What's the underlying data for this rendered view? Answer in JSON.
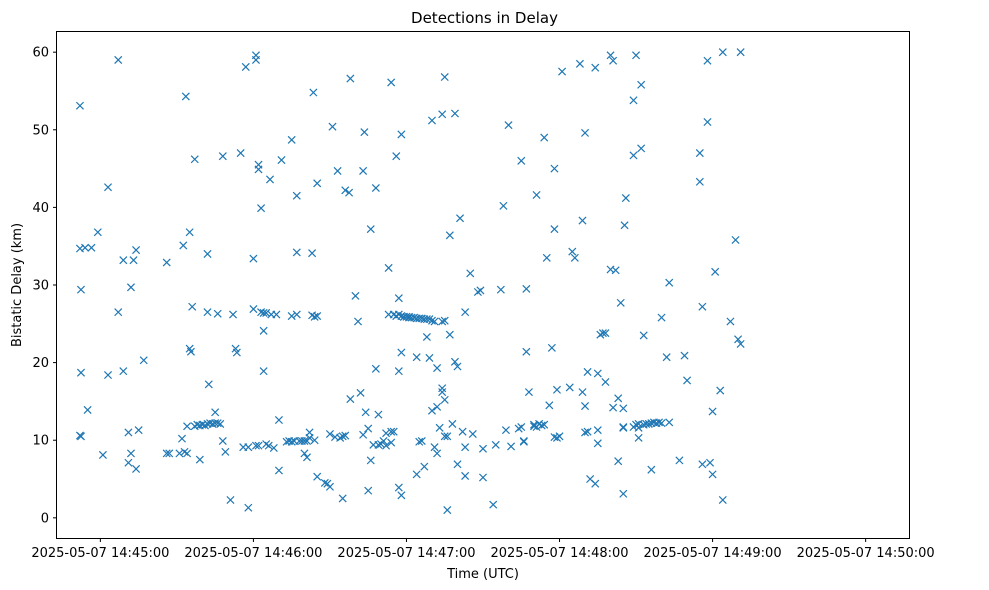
{
  "chart_data": {
    "type": "scatter",
    "title": "Detections in Delay",
    "xlabel": "Time (UTC)",
    "ylabel": "Bistatic Delay (km)",
    "marker": "x",
    "color": "#1f77b4",
    "xlim": [
      -17,
      317
    ],
    "ylim": [
      -2.6,
      62.6
    ],
    "x_unit": "seconds after 2025-05-07 14:45:00",
    "xticks": [
      {
        "value": 0,
        "label": "2025-05-07 14:45:00"
      },
      {
        "value": 60,
        "label": "2025-05-07 14:46:00"
      },
      {
        "value": 120,
        "label": "2025-05-07 14:47:00"
      },
      {
        "value": 180,
        "label": "2025-05-07 14:48:00"
      },
      {
        "value": 240,
        "label": "2025-05-07 14:49:00"
      },
      {
        "value": 300,
        "label": "2025-05-07 14:50:00"
      }
    ],
    "yticks": [
      {
        "value": 0,
        "label": "0"
      },
      {
        "value": 10,
        "label": "10"
      },
      {
        "value": 20,
        "label": "20"
      },
      {
        "value": 30,
        "label": "30"
      },
      {
        "value": 40,
        "label": "40"
      },
      {
        "value": 50,
        "label": "50"
      },
      {
        "value": 60,
        "label": "60"
      }
    ],
    "points": [
      [
        -8,
        53.1
      ],
      [
        -8,
        34.7
      ],
      [
        -7.6,
        29.4
      ],
      [
        -7.6,
        18.7
      ],
      [
        -8,
        10.6
      ],
      [
        -7.6,
        10.5
      ],
      [
        -6,
        34.8
      ],
      [
        -5,
        13.9
      ],
      [
        -3.5,
        34.8
      ],
      [
        -1,
        36.8
      ],
      [
        1,
        8.1
      ],
      [
        3,
        18.4
      ],
      [
        3,
        42.6
      ],
      [
        7,
        26.5
      ],
      [
        7,
        59
      ],
      [
        9,
        33.2
      ],
      [
        9,
        18.9
      ],
      [
        11,
        11
      ],
      [
        11,
        7.1
      ],
      [
        12,
        8.3
      ],
      [
        12,
        29.7
      ],
      [
        13,
        33.2
      ],
      [
        14,
        6.3
      ],
      [
        14,
        34.5
      ],
      [
        15,
        11.3
      ],
      [
        17,
        20.3
      ],
      [
        26,
        32.9
      ],
      [
        26,
        8.3
      ],
      [
        27,
        8.3
      ],
      [
        31,
        8.3
      ],
      [
        32,
        10.2
      ],
      [
        32.5,
        35.1
      ],
      [
        33,
        8.5
      ],
      [
        33.5,
        54.3
      ],
      [
        34,
        8.3
      ],
      [
        34,
        11.8
      ],
      [
        35,
        36.8
      ],
      [
        35,
        21.8
      ],
      [
        35.5,
        21.4
      ],
      [
        36,
        27.2
      ],
      [
        37,
        46.2
      ],
      [
        37,
        11.8
      ],
      [
        38,
        12
      ],
      [
        39,
        11.9
      ],
      [
        39,
        7.5
      ],
      [
        40,
        12
      ],
      [
        41,
        11.9
      ],
      [
        42,
        12.1
      ],
      [
        42,
        34
      ],
      [
        42.5,
        17.2
      ],
      [
        42,
        26.5
      ],
      [
        43,
        12.2
      ],
      [
        44,
        12.1
      ],
      [
        45,
        12.2
      ],
      [
        45,
        13.6
      ],
      [
        46,
        12.2
      ],
      [
        46,
        26.3
      ],
      [
        47,
        12.1
      ],
      [
        48,
        9.9
      ],
      [
        48,
        46.6
      ],
      [
        49,
        8.5
      ],
      [
        51,
        2.3
      ],
      [
        52,
        26.2
      ],
      [
        53,
        21.8
      ],
      [
        53.5,
        21.3
      ],
      [
        55,
        47
      ],
      [
        56,
        9.1
      ],
      [
        57,
        58.1
      ],
      [
        58,
        1.3
      ],
      [
        58,
        9.1
      ],
      [
        60,
        26.9
      ],
      [
        60,
        33.4
      ],
      [
        61,
        9.3
      ],
      [
        61,
        59.6
      ],
      [
        61,
        59
      ],
      [
        62,
        9.3
      ],
      [
        62,
        45.5
      ],
      [
        62,
        44.9
      ],
      [
        63,
        39.9
      ],
      [
        63,
        26.5
      ],
      [
        64,
        18.9
      ],
      [
        64,
        26.4
      ],
      [
        64,
        24.1
      ],
      [
        65,
        9.5
      ],
      [
        65,
        26.4
      ],
      [
        66,
        9.3
      ],
      [
        66.5,
        43.6
      ],
      [
        67,
        26.2
      ],
      [
        68,
        9
      ],
      [
        69,
        26.2
      ],
      [
        70,
        12.6
      ],
      [
        70,
        6.1
      ],
      [
        71,
        46.1
      ],
      [
        73,
        9.8
      ],
      [
        74,
        9.9
      ],
      [
        75,
        48.7
      ],
      [
        75,
        26
      ],
      [
        75,
        9.8
      ],
      [
        76,
        9.9
      ],
      [
        77,
        34.2
      ],
      [
        77,
        41.5
      ],
      [
        77,
        26.2
      ],
      [
        78,
        9.9
      ],
      [
        79,
        9.9
      ],
      [
        80,
        8.3
      ],
      [
        80,
        9.9
      ],
      [
        81,
        9.9
      ],
      [
        81,
        7.8
      ],
      [
        82,
        10.3
      ],
      [
        82,
        11
      ],
      [
        83,
        34.1
      ],
      [
        83,
        26.1
      ],
      [
        83.5,
        54.8
      ],
      [
        84,
        25.9
      ],
      [
        84,
        10
      ],
      [
        85,
        26
      ],
      [
        85,
        43.1
      ],
      [
        85,
        5.3
      ],
      [
        88,
        4.5
      ],
      [
        89,
        4.4
      ],
      [
        90,
        10.8
      ],
      [
        90,
        4
      ],
      [
        91,
        50.4
      ],
      [
        92,
        10.4
      ],
      [
        93,
        44.7
      ],
      [
        94,
        10.3
      ],
      [
        95,
        10.5
      ],
      [
        95,
        2.5
      ],
      [
        96,
        10.6
      ],
      [
        96,
        42.2
      ],
      [
        97.5,
        41.9
      ],
      [
        98,
        56.6
      ],
      [
        98,
        15.3
      ],
      [
        100,
        28.6
      ],
      [
        101,
        25.3
      ],
      [
        102,
        16.1
      ],
      [
        103,
        10.7
      ],
      [
        103,
        44.7
      ],
      [
        103.5,
        49.7
      ],
      [
        104,
        13.6
      ],
      [
        105,
        11.5
      ],
      [
        105,
        3.5
      ],
      [
        106,
        37.2
      ],
      [
        106,
        7.4
      ],
      [
        107,
        9.4
      ],
      [
        108,
        42.5
      ],
      [
        108,
        19.2
      ],
      [
        109,
        13.3
      ],
      [
        109,
        9.4
      ],
      [
        110,
        9.5
      ],
      [
        111,
        9.9
      ],
      [
        112,
        9.3
      ],
      [
        112,
        10.9
      ],
      [
        113,
        32.2
      ],
      [
        113,
        26.2
      ],
      [
        114,
        9.7
      ],
      [
        114,
        56.1
      ],
      [
        114,
        11.1
      ],
      [
        115,
        26.2
      ],
      [
        115,
        11.1
      ],
      [
        116,
        26
      ],
      [
        116,
        46.6
      ],
      [
        117,
        28.3
      ],
      [
        117,
        26.2
      ],
      [
        117,
        3.9
      ],
      [
        117,
        18.9
      ],
      [
        118,
        21.3
      ],
      [
        118,
        49.4
      ],
      [
        118,
        2.9
      ],
      [
        118,
        26
      ],
      [
        119,
        25.9
      ],
      [
        119,
        25.9
      ],
      [
        120,
        25.9
      ],
      [
        121,
        25.9
      ],
      [
        121,
        25.8
      ],
      [
        122,
        25.8
      ],
      [
        123,
        25.8
      ],
      [
        124,
        25.7
      ],
      [
        124,
        20.7
      ],
      [
        124,
        5.6
      ],
      [
        125,
        25.7
      ],
      [
        125,
        9.8
      ],
      [
        126,
        25.7
      ],
      [
        126,
        9.9
      ],
      [
        127,
        25.6
      ],
      [
        127,
        6.6
      ],
      [
        128,
        25.6
      ],
      [
        128,
        23.3
      ],
      [
        129,
        25.6
      ],
      [
        129,
        20.6
      ],
      [
        130,
        51.2
      ],
      [
        130,
        25.4
      ],
      [
        130,
        13.8
      ],
      [
        131,
        25.3
      ],
      [
        131,
        9.1
      ],
      [
        132,
        19.3
      ],
      [
        132,
        14.3
      ],
      [
        132,
        8.3
      ],
      [
        133,
        11.6
      ],
      [
        134,
        25.3
      ],
      [
        134,
        16.2
      ],
      [
        134,
        16.7
      ],
      [
        134,
        52
      ],
      [
        135,
        56.8
      ],
      [
        135,
        10.5
      ],
      [
        135,
        25.4
      ],
      [
        135,
        15.2
      ],
      [
        136,
        10.5
      ],
      [
        136,
        1
      ],
      [
        137,
        36.4
      ],
      [
        137,
        23.6
      ],
      [
        138,
        12.1
      ],
      [
        139,
        52.1
      ],
      [
        139,
        20.1
      ],
      [
        140,
        19.5
      ],
      [
        140,
        6.9
      ],
      [
        141,
        38.6
      ],
      [
        142,
        11.1
      ],
      [
        143,
        9.1
      ],
      [
        143,
        26.5
      ],
      [
        143,
        5.4
      ],
      [
        145,
        31.5
      ],
      [
        146,
        10.8
      ],
      [
        148,
        29.1
      ],
      [
        149,
        29.3
      ],
      [
        150,
        8.9
      ],
      [
        150,
        5.2
      ],
      [
        154,
        1.7
      ],
      [
        155,
        9.4
      ],
      [
        157,
        29.4
      ],
      [
        158,
        40.2
      ],
      [
        159,
        11.3
      ],
      [
        160,
        50.6
      ],
      [
        161,
        9.2
      ],
      [
        164,
        11.5
      ],
      [
        165,
        11.7
      ],
      [
        165,
        46
      ],
      [
        166,
        9.8
      ],
      [
        166,
        9.9
      ],
      [
        167,
        29.5
      ],
      [
        167,
        21.4
      ],
      [
        168,
        16.2
      ],
      [
        170,
        12
      ],
      [
        170,
        11.8
      ],
      [
        171,
        41.6
      ],
      [
        171,
        11.7
      ],
      [
        172,
        12.1
      ],
      [
        173,
        11.9
      ],
      [
        174,
        12
      ],
      [
        174,
        49
      ],
      [
        175,
        33.5
      ],
      [
        176,
        14.5
      ],
      [
        177,
        21.9
      ],
      [
        178,
        10.4
      ],
      [
        178,
        45
      ],
      [
        178,
        37.2
      ],
      [
        179,
        10.3
      ],
      [
        179,
        16.5
      ],
      [
        180,
        10.5
      ],
      [
        181,
        57.5
      ],
      [
        184,
        16.8
      ],
      [
        185,
        34.3
      ],
      [
        186,
        33.5
      ],
      [
        188,
        58.5
      ],
      [
        189,
        38.3
      ],
      [
        189,
        16.2
      ],
      [
        190,
        49.6
      ],
      [
        190,
        11
      ],
      [
        190,
        14.4
      ],
      [
        191,
        18.8
      ],
      [
        191,
        11.1
      ],
      [
        192,
        5
      ],
      [
        194,
        4.4
      ],
      [
        194,
        58
      ],
      [
        195,
        18.6
      ],
      [
        195,
        11.3
      ],
      [
        195,
        9.6
      ],
      [
        196,
        23.6
      ],
      [
        197,
        23.8
      ],
      [
        198,
        23.8
      ],
      [
        198,
        17.5
      ],
      [
        200,
        59.6
      ],
      [
        200,
        32
      ],
      [
        201,
        58.9
      ],
      [
        201,
        14.2
      ],
      [
        202,
        31.9
      ],
      [
        203,
        7.3
      ],
      [
        203,
        15.4
      ],
      [
        204,
        27.7
      ],
      [
        205,
        14.1
      ],
      [
        205,
        11.6
      ],
      [
        205,
        11.7
      ],
      [
        205,
        3.1
      ],
      [
        205.5,
        37.7
      ],
      [
        206,
        41.2
      ],
      [
        209,
        11.7
      ],
      [
        209,
        46.7
      ],
      [
        209,
        53.8
      ],
      [
        210,
        59.6
      ],
      [
        210,
        12
      ],
      [
        211,
        10.3
      ],
      [
        211,
        11.6
      ],
      [
        211,
        12.1
      ],
      [
        212,
        47.6
      ],
      [
        212,
        55.8
      ],
      [
        213,
        23.5
      ],
      [
        213,
        12
      ],
      [
        214,
        12.1
      ],
      [
        215,
        12.1
      ],
      [
        216,
        6.2
      ],
      [
        216,
        12.2
      ],
      [
        217,
        12.3
      ],
      [
        218,
        12.2
      ],
      [
        219,
        12.3
      ],
      [
        220,
        25.8
      ],
      [
        220,
        12.2
      ],
      [
        222,
        20.7
      ],
      [
        223,
        30.3
      ],
      [
        223,
        12.3
      ],
      [
        227,
        7.4
      ],
      [
        229,
        20.9
      ],
      [
        230,
        17.7
      ],
      [
        235,
        47
      ],
      [
        235,
        43.3
      ],
      [
        236,
        27.2
      ],
      [
        236,
        6.9
      ],
      [
        238,
        58.9
      ],
      [
        238,
        51
      ],
      [
        239,
        7.1
      ],
      [
        240,
        13.7
      ],
      [
        240,
        5.6
      ],
      [
        241,
        31.7
      ],
      [
        243,
        16.4
      ],
      [
        244,
        60
      ],
      [
        244,
        2.3
      ],
      [
        247,
        25.3
      ],
      [
        249,
        35.8
      ],
      [
        250,
        23
      ],
      [
        251,
        60
      ],
      [
        251,
        22.4
      ]
    ]
  }
}
